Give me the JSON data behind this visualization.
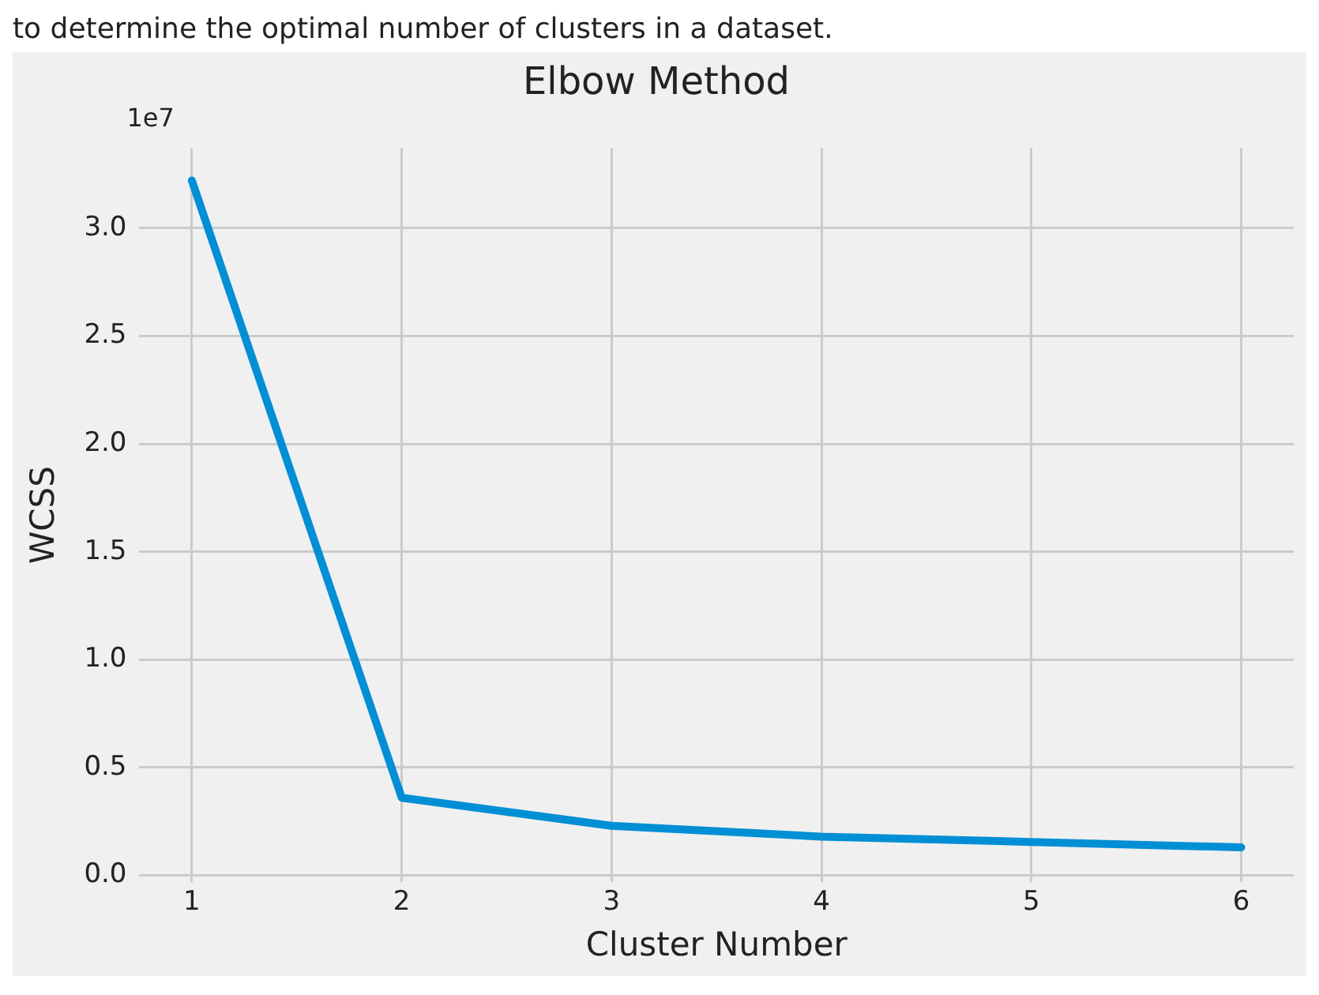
{
  "chart_data": {
    "type": "line",
    "title": "Elbow Method",
    "xlabel": "Cluster Number",
    "ylabel": "WCSS",
    "x": [
      1,
      2,
      3,
      4,
      5,
      6
    ],
    "series": [
      {
        "color": "#008fd5",
        "values": [
          3.22,
          0.36,
          0.23,
          0.18,
          0.155,
          0.13
        ]
      }
    ],
    "xlim": [
      0.75,
      6.25
    ],
    "xticks": [
      1,
      2,
      3,
      4,
      5,
      6
    ],
    "ylim": [
      -0.03,
      3.37
    ],
    "yticks": [
      {
        "value": 0,
        "label": "0.0"
      },
      {
        "value": 0.5,
        "label": "0.5"
      },
      {
        "value": 1,
        "label": "1.0"
      },
      {
        "value": 1.5,
        "label": "1.5"
      },
      {
        "value": 2,
        "label": "2.0"
      },
      {
        "value": 2.5,
        "label": "2.5"
      },
      {
        "value": 3,
        "label": "3.0"
      }
    ],
    "grid": true,
    "legend": false,
    "marker": "none",
    "line_style": "solid",
    "annotations": [
      "to determine the optimal number of clusters in a dataset.",
      "1e7"
    ]
  }
}
